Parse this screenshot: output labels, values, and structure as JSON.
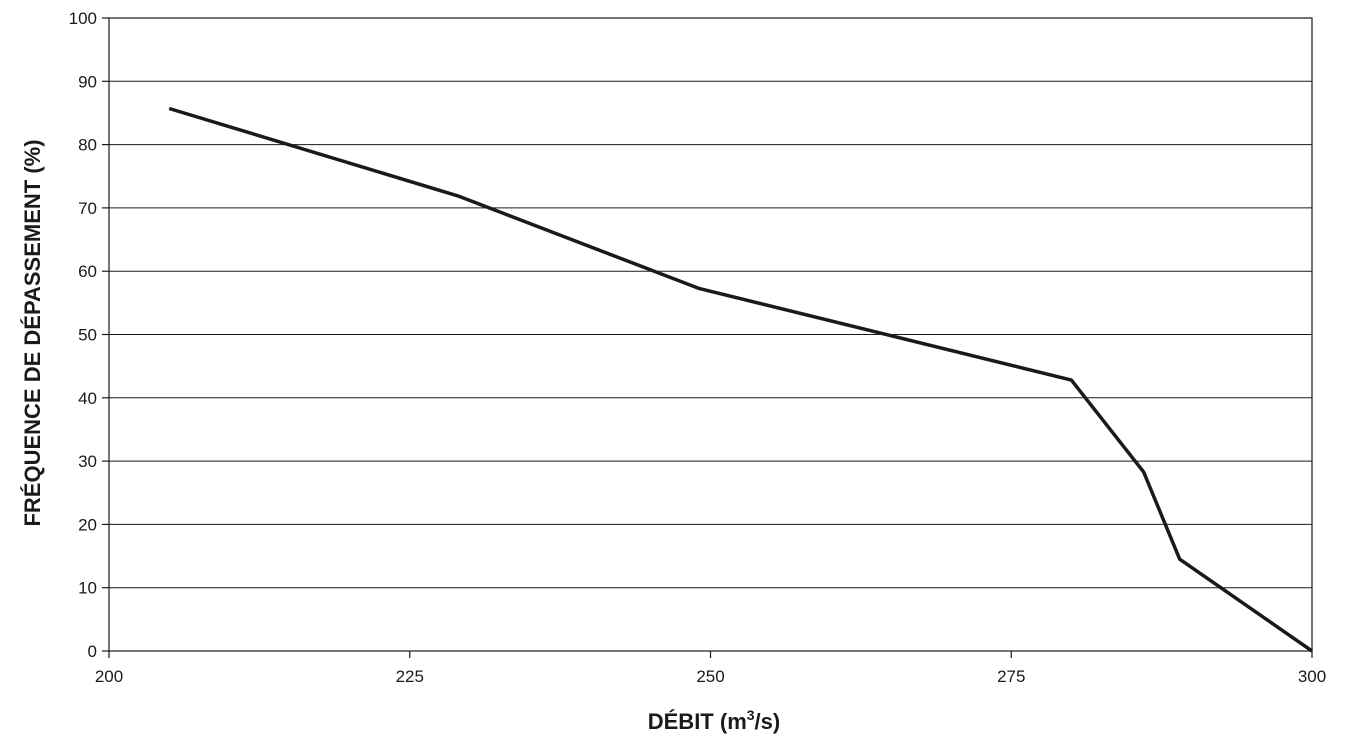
{
  "chart_data": {
    "type": "line",
    "title": "",
    "xlabel": "DÉBIT (m",
    "xlabel_sup": "3",
    "xlabel_tail": "/s)",
    "ylabel": "FRÉQUENCE DE DÉPASSEMENT (%)",
    "xlim": [
      200,
      300
    ],
    "ylim": [
      0,
      100
    ],
    "x_ticks": [
      "200",
      "225",
      "250",
      "275",
      "300"
    ],
    "y_ticks": [
      "0",
      "10",
      "20",
      "30",
      "40",
      "50",
      "60",
      "70",
      "80",
      "90",
      "100"
    ],
    "grid": "horizontal",
    "series": [
      {
        "x": [
          205,
          229,
          249,
          280,
          286,
          289,
          300
        ],
        "y": [
          85.7,
          71.9,
          57.3,
          42.8,
          28.3,
          14.5,
          0
        ]
      }
    ],
    "colors": {
      "line": "#1a1a1a",
      "grid": "#1a1a1a",
      "axis": "#1a1a1a"
    }
  }
}
